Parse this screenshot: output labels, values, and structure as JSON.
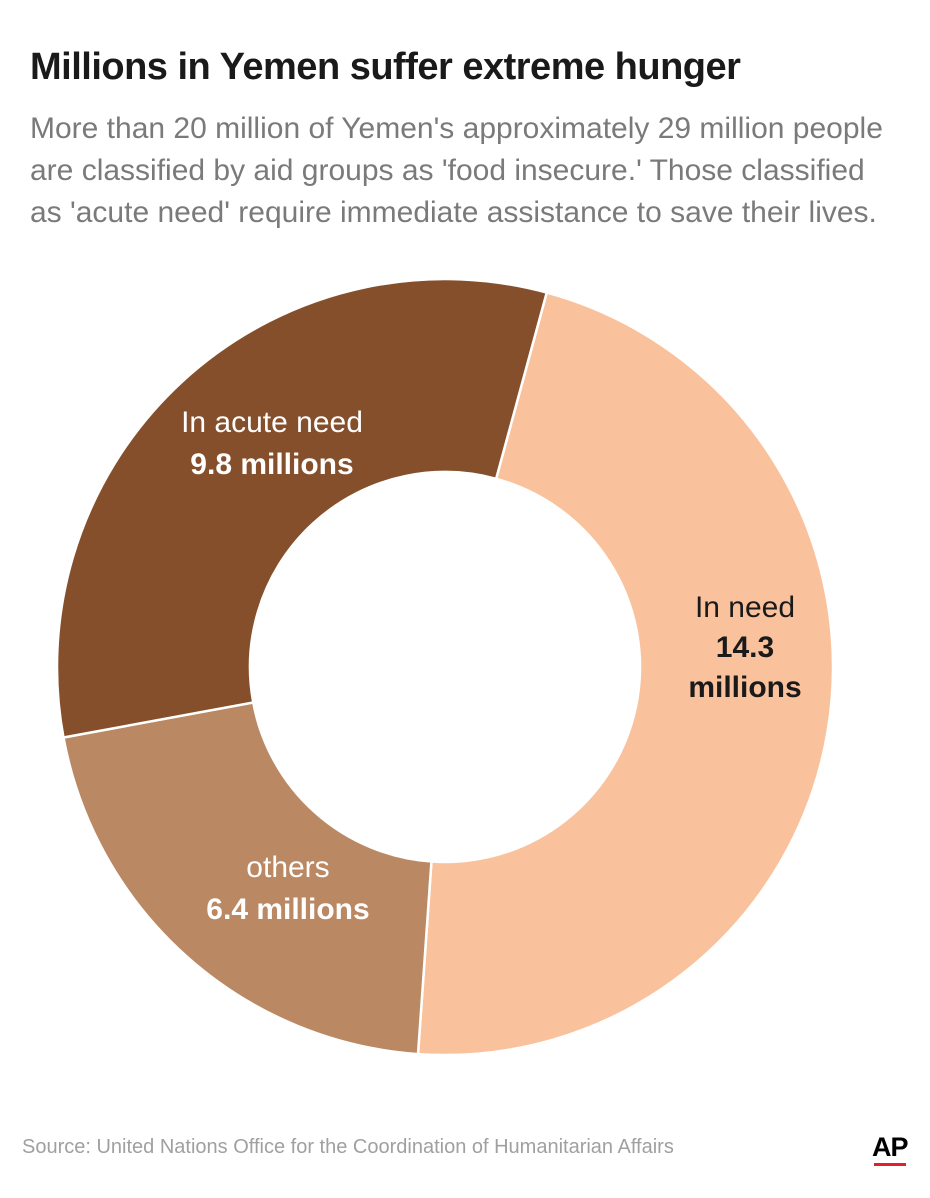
{
  "title": "Millions in Yemen suffer extreme hunger",
  "subtitle_lines": [
    "More than 20 million of Yemen's approximately 29 million people",
    "are classified by aid groups as 'food insecure.' Those classified",
    "as 'acute need' require immediate assistance to save their lives."
  ],
  "source": "Source: United Nations Office for the Coordination of Humanitarian Affairs",
  "logo_text": "AP",
  "colors": {
    "in_need": "#f9c29d",
    "others": "#ba8964",
    "acute_need": "#854f2b",
    "logo_accent": "#e0202a"
  },
  "chart_data": {
    "type": "pie",
    "variant": "donut",
    "title": "Millions in Yemen suffer extreme hunger",
    "slices": [
      {
        "name": "In need",
        "value": 14.3,
        "label_lines": [
          "In need"
        ],
        "value_lines": [
          "14.3",
          "millions"
        ],
        "color": "#f9c29d",
        "text_color": "#1a1a1a"
      },
      {
        "name": "others",
        "value": 6.4,
        "label_lines": [
          "others"
        ],
        "value_lines": [
          "6.4 millions"
        ],
        "color": "#ba8964",
        "text_color": "#ffffff"
      },
      {
        "name": "In acute need",
        "value": 9.8,
        "label_lines": [
          "In acute need"
        ],
        "value_lines": [
          "9.8 millions"
        ],
        "color": "#854f2b",
        "text_color": "#ffffff"
      }
    ],
    "legend": "none"
  }
}
